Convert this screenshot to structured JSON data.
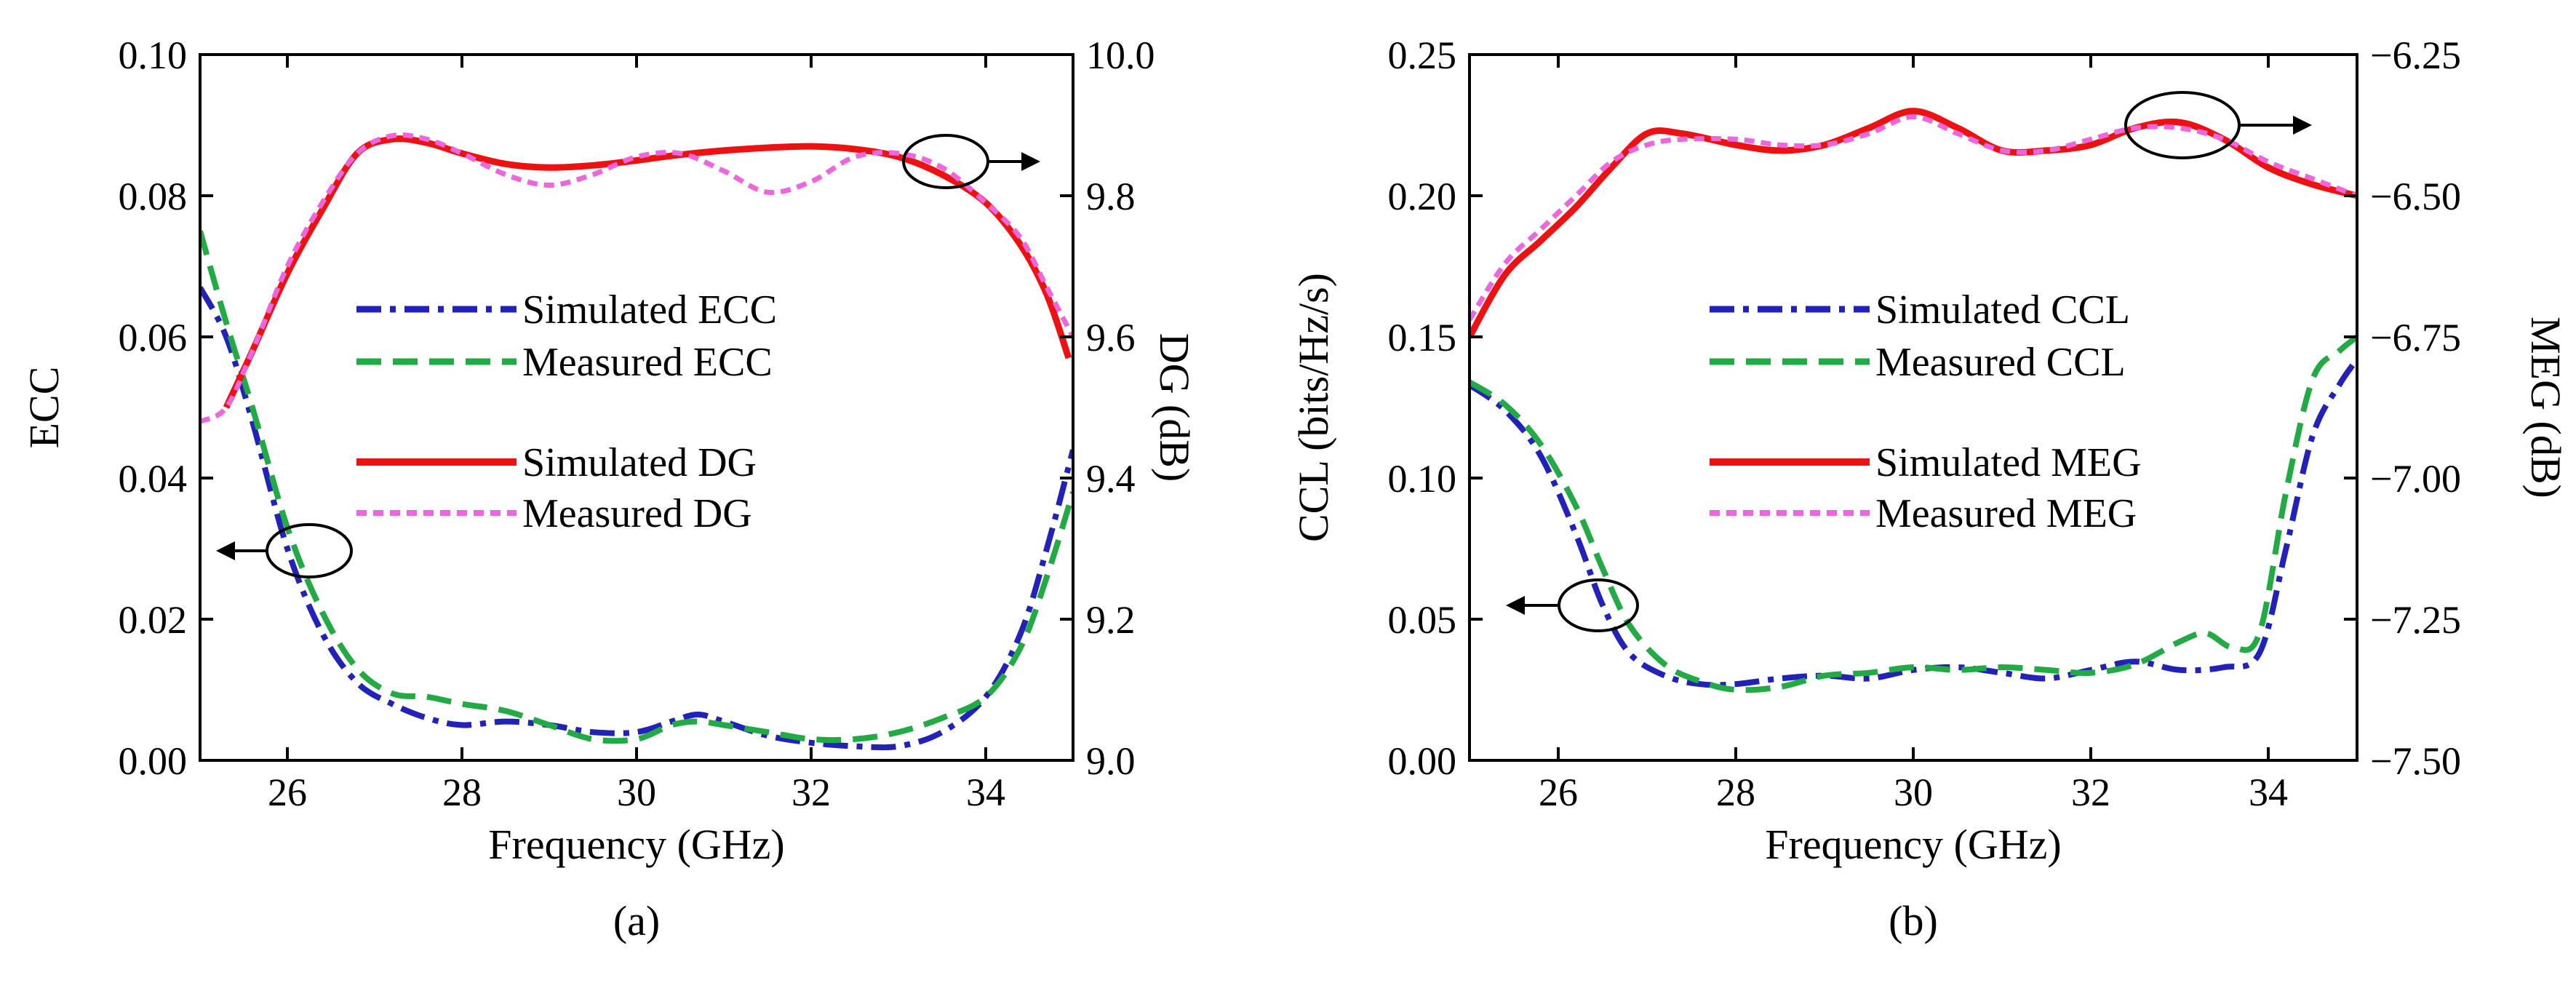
{
  "chart_data": [
    {
      "type": "line",
      "caption": "(a)",
      "xlabel": "Frequency (GHz)",
      "ylabel": "ECC",
      "y2label": "DG (dB)",
      "xlim": [
        25,
        35
      ],
      "ylim": [
        0,
        0.1
      ],
      "y2lim": [
        9.0,
        10.0
      ],
      "xticks": [
        "26",
        "28",
        "30",
        "32",
        "34"
      ],
      "yticks": [
        "0.00",
        "0.02",
        "0.04",
        "0.06",
        "0.08",
        "0.10"
      ],
      "y2ticks": [
        "9.0",
        "9.2",
        "9.4",
        "9.6",
        "9.8",
        "10.0"
      ],
      "series": [
        {
          "name": "Simulated ECC",
          "axis": "left",
          "color": "#2222bb",
          "dash": "dashdot",
          "x": [
            25.0,
            25.3,
            25.6,
            26.0,
            26.4,
            26.8,
            27.2,
            27.6,
            28.0,
            28.5,
            29.0,
            29.5,
            30.0,
            30.4,
            30.7,
            31.0,
            31.5,
            32.0,
            32.5,
            33.0,
            33.5,
            34.0,
            34.4,
            34.7,
            35.0
          ],
          "values": [
            0.067,
            0.06,
            0.048,
            0.03,
            0.018,
            0.011,
            0.008,
            0.006,
            0.005,
            0.0055,
            0.005,
            0.004,
            0.004,
            0.0055,
            0.0065,
            0.0055,
            0.0035,
            0.0025,
            0.002,
            0.002,
            0.004,
            0.009,
            0.018,
            0.03,
            0.044
          ]
        },
        {
          "name": "Measured ECC",
          "axis": "left",
          "color": "#22aa44",
          "dash": "dashed",
          "x": [
            25.0,
            25.3,
            25.6,
            26.0,
            26.4,
            26.8,
            27.2,
            27.6,
            28.0,
            28.5,
            29.0,
            29.5,
            30.0,
            30.4,
            30.7,
            31.0,
            31.5,
            32.0,
            32.5,
            33.0,
            33.5,
            34.0,
            34.4,
            34.7,
            35.0
          ],
          "values": [
            0.075,
            0.062,
            0.05,
            0.033,
            0.021,
            0.013,
            0.0095,
            0.009,
            0.008,
            0.007,
            0.005,
            0.003,
            0.003,
            0.005,
            0.0055,
            0.005,
            0.004,
            0.003,
            0.003,
            0.004,
            0.006,
            0.009,
            0.016,
            0.026,
            0.038
          ]
        },
        {
          "name": "Simulated DG",
          "axis": "right",
          "color": "#ee1111",
          "dash": "solid",
          "x": [
            25.3,
            25.6,
            26.0,
            26.4,
            26.8,
            27.2,
            27.6,
            28.0,
            28.5,
            29.0,
            29.5,
            30.0,
            30.5,
            31.0,
            31.5,
            32.0,
            32.5,
            33.0,
            33.5,
            34.0,
            34.4,
            34.7,
            34.95
          ],
          "values": [
            9.5,
            9.58,
            9.69,
            9.78,
            9.86,
            9.88,
            9.875,
            9.86,
            9.845,
            9.84,
            9.843,
            9.85,
            9.858,
            9.864,
            9.868,
            9.87,
            9.866,
            9.855,
            9.83,
            9.79,
            9.73,
            9.66,
            9.57
          ]
        },
        {
          "name": "Measured DG",
          "axis": "right",
          "color": "#ee66dd",
          "dash": "shortdash",
          "x": [
            25.0,
            25.3,
            25.6,
            26.0,
            26.4,
            26.8,
            27.2,
            27.6,
            28.0,
            28.5,
            29.0,
            29.5,
            30.0,
            30.5,
            31.0,
            31.5,
            32.0,
            32.5,
            33.0,
            33.5,
            34.0,
            34.4,
            34.7,
            35.0
          ],
          "values": [
            9.48,
            9.5,
            9.58,
            9.7,
            9.79,
            9.86,
            9.885,
            9.88,
            9.86,
            9.83,
            9.815,
            9.83,
            9.855,
            9.86,
            9.835,
            9.805,
            9.82,
            9.855,
            9.86,
            9.84,
            9.79,
            9.74,
            9.67,
            9.6
          ]
        }
      ],
      "legend": [
        "Simulated ECC",
        "Measured ECC",
        "Simulated DG",
        "Measured DG"
      ]
    },
    {
      "type": "line",
      "caption": "(b)",
      "xlabel": "Frequency (GHz)",
      "ylabel": "CCL (bits/Hz/s)",
      "y2label": "MEG (dB)",
      "xlim": [
        25,
        35
      ],
      "ylim": [
        0,
        0.25
      ],
      "y2lim": [
        -7.5,
        -6.25
      ],
      "xticks": [
        "26",
        "28",
        "30",
        "32",
        "34"
      ],
      "yticks": [
        "0.00",
        "0.05",
        "0.10",
        "0.15",
        "0.20",
        "0.25"
      ],
      "y2ticks": [
        "−7.50",
        "−7.25",
        "−7.00",
        "−6.75",
        "−6.50",
        "−6.25"
      ],
      "series": [
        {
          "name": "Simulated CCL",
          "axis": "left",
          "color": "#2222bb",
          "dash": "dashdot",
          "x": [
            25.0,
            25.4,
            25.8,
            26.2,
            26.5,
            26.8,
            27.2,
            27.6,
            28.0,
            28.5,
            29.0,
            29.5,
            30.0,
            30.5,
            31.0,
            31.5,
            32.0,
            32.5,
            33.0,
            33.5,
            33.9,
            34.2,
            34.5,
            34.8,
            35.0
          ],
          "values": [
            0.133,
            0.124,
            0.108,
            0.08,
            0.055,
            0.038,
            0.03,
            0.027,
            0.027,
            0.029,
            0.03,
            0.029,
            0.032,
            0.033,
            0.031,
            0.029,
            0.032,
            0.035,
            0.032,
            0.033,
            0.038,
            0.075,
            0.115,
            0.133,
            0.142
          ]
        },
        {
          "name": "Measured CCL",
          "axis": "left",
          "color": "#22aa44",
          "dash": "dashed",
          "x": [
            25.0,
            25.4,
            25.8,
            26.2,
            26.5,
            26.8,
            27.2,
            27.6,
            28.0,
            28.5,
            29.0,
            29.5,
            30.0,
            30.5,
            31.0,
            31.5,
            32.0,
            32.5,
            33.0,
            33.3,
            33.6,
            33.9,
            34.2,
            34.5,
            34.8,
            35.0
          ],
          "values": [
            0.134,
            0.126,
            0.112,
            0.09,
            0.068,
            0.048,
            0.034,
            0.028,
            0.025,
            0.026,
            0.03,
            0.031,
            0.033,
            0.032,
            0.033,
            0.032,
            0.031,
            0.034,
            0.042,
            0.045,
            0.04,
            0.045,
            0.095,
            0.135,
            0.145,
            0.15
          ]
        },
        {
          "name": "Simulated MEG",
          "axis": "right",
          "color": "#ee1111",
          "dash": "solid",
          "x": [
            25.0,
            25.4,
            25.8,
            26.2,
            26.6,
            27.0,
            27.4,
            28.0,
            28.5,
            29.0,
            29.5,
            30.0,
            30.5,
            31.0,
            31.5,
            32.0,
            32.5,
            33.0,
            33.5,
            34.0,
            34.5,
            35.0
          ],
          "values": [
            -6.75,
            -6.64,
            -6.58,
            -6.52,
            -6.45,
            -6.39,
            -6.39,
            -6.41,
            -6.42,
            -6.41,
            -6.38,
            -6.35,
            -6.38,
            -6.42,
            -6.42,
            -6.41,
            -6.38,
            -6.37,
            -6.4,
            -6.45,
            -6.48,
            -6.5
          ]
        },
        {
          "name": "Measured MEG",
          "axis": "right",
          "color": "#ee66dd",
          "dash": "shortdash",
          "x": [
            25.0,
            25.4,
            25.8,
            26.2,
            26.6,
            27.0,
            27.4,
            28.0,
            28.5,
            29.0,
            29.5,
            30.0,
            30.5,
            31.0,
            31.5,
            32.0,
            32.5,
            33.0,
            33.5,
            34.0,
            34.5,
            35.0
          ],
          "values": [
            -6.72,
            -6.62,
            -6.56,
            -6.5,
            -6.44,
            -6.41,
            -6.4,
            -6.4,
            -6.41,
            -6.41,
            -6.39,
            -6.36,
            -6.39,
            -6.42,
            -6.42,
            -6.4,
            -6.38,
            -6.38,
            -6.4,
            -6.44,
            -6.47,
            -6.5
          ]
        }
      ],
      "legend": [
        "Simulated CCL",
        "Measured CCL",
        "Simulated MEG",
        "Measured MEG"
      ]
    }
  ]
}
